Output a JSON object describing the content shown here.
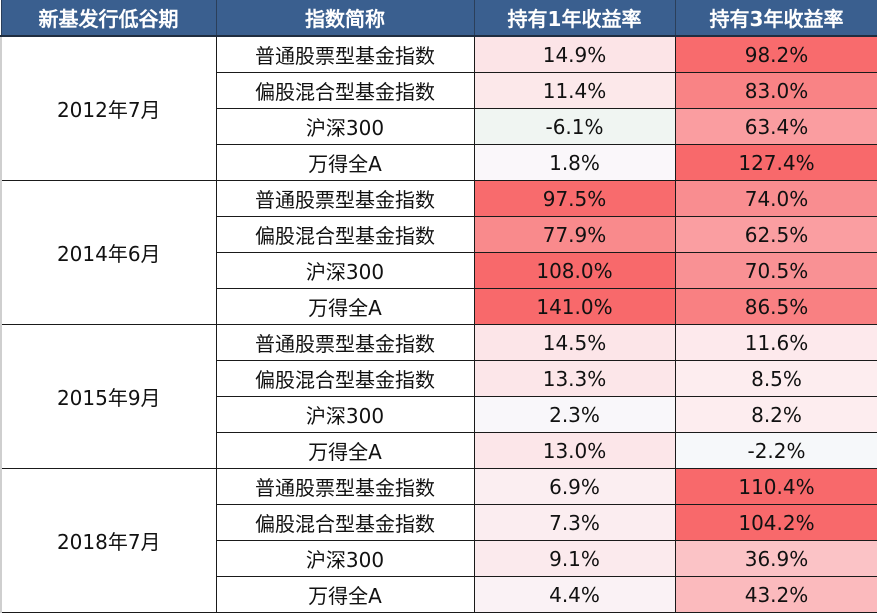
{
  "headers": [
    "新基发行低谷期",
    "指数简称",
    "持有1年收益率",
    "持有3年收益率"
  ],
  "colors": {
    "header_bg": "#3a5f8f",
    "header_text": "#ffffff",
    "heat_high": "#f8696b",
    "heat_mid": "#fbe6e9",
    "heat_low": "#f2f6f3"
  },
  "groups": [
    {
      "period": "2012年7月",
      "rows": [
        {
          "index": "普通股票型基金指数",
          "y1": "14.9%",
          "y3": "98.2%",
          "y1_bg": "#fce4e7",
          "y3_bg": "#f86b6d"
        },
        {
          "index": "偏股混合型基金指数",
          "y1": "11.4%",
          "y3": "83.0%",
          "y1_bg": "#fce8ea",
          "y3_bg": "#f98385"
        },
        {
          "index": "沪深300",
          "y1": "-6.1%",
          "y3": "63.4%",
          "y1_bg": "#f0f5f2",
          "y3_bg": "#fa9da0"
        },
        {
          "index": "万得全A",
          "y1": "1.8%",
          "y3": "127.4%",
          "y1_bg": "#faf7fa",
          "y3_bg": "#f8696b"
        }
      ]
    },
    {
      "period": "2014年6月",
      "rows": [
        {
          "index": "普通股票型基金指数",
          "y1": "97.5%",
          "y3": "74.0%",
          "y1_bg": "#f86b6d",
          "y3_bg": "#f98d90"
        },
        {
          "index": "偏股混合型基金指数",
          "y1": "77.9%",
          "y3": "62.5%",
          "y1_bg": "#f98a8c",
          "y3_bg": "#fa9ea1"
        },
        {
          "index": "沪深300",
          "y1": "108.0%",
          "y3": "70.5%",
          "y1_bg": "#f8696b",
          "y3_bg": "#f99194"
        },
        {
          "index": "万得全A",
          "y1": "141.0%",
          "y3": "86.5%",
          "y1_bg": "#f8696b",
          "y3_bg": "#f98082"
        }
      ]
    },
    {
      "period": "2015年9月",
      "rows": [
        {
          "index": "普通股票型基金指数",
          "y1": "14.5%",
          "y3": "11.6%",
          "y1_bg": "#fce5e8",
          "y3_bg": "#fde9ec"
        },
        {
          "index": "偏股混合型基金指数",
          "y1": "13.3%",
          "y3": "8.5%",
          "y1_bg": "#fce6e9",
          "y3_bg": "#fdedef"
        },
        {
          "index": "沪深300",
          "y1": "2.3%",
          "y3": "8.2%",
          "y1_bg": "#f9f7fa",
          "y3_bg": "#fdedef"
        },
        {
          "index": "万得全A",
          "y1": "13.0%",
          "y3": "-2.2%",
          "y1_bg": "#fce6e9",
          "y3_bg": "#f6f8fa"
        }
      ]
    },
    {
      "period": "2018年7月",
      "rows": [
        {
          "index": "普通股票型基金指数",
          "y1": "6.9%",
          "y3": "110.4%",
          "y1_bg": "#fbeef1",
          "y3_bg": "#f8696b"
        },
        {
          "index": "偏股混合型基金指数",
          "y1": "7.3%",
          "y3": "104.2%",
          "y1_bg": "#fbedf0",
          "y3_bg": "#f8696b"
        },
        {
          "index": "沪深300",
          "y1": "9.1%",
          "y3": "36.9%",
          "y1_bg": "#fbeaed",
          "y3_bg": "#fbc3c6"
        },
        {
          "index": "万得全A",
          "y1": "4.4%",
          "y3": "43.2%",
          "y1_bg": "#faf2f5",
          "y3_bg": "#fbbabd"
        }
      ]
    }
  ]
}
